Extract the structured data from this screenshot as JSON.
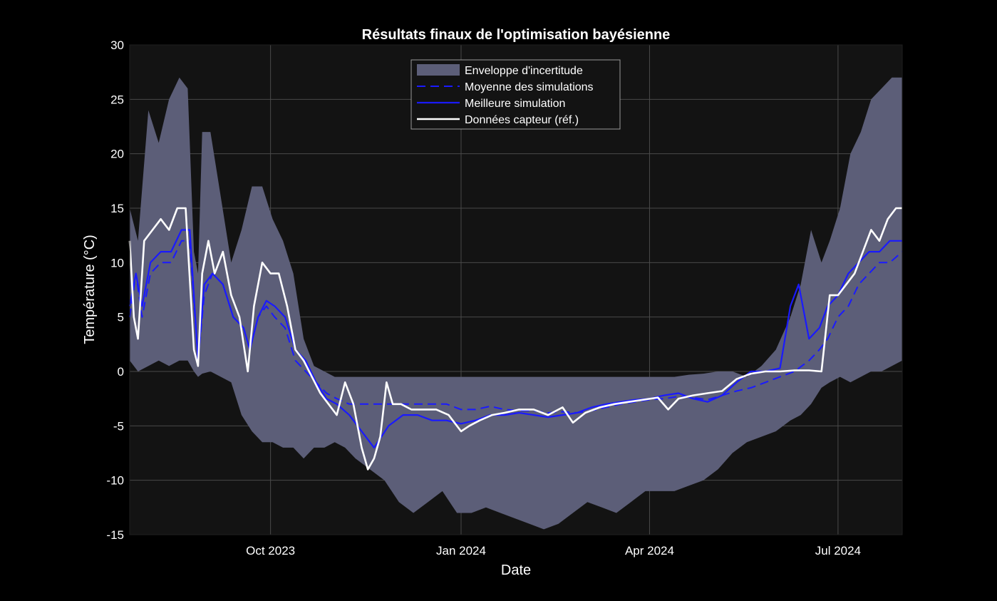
{
  "chart_data": {
    "type": "line",
    "title": "Résultats finaux de l'optimisation bayésienne",
    "xlabel": "Date",
    "ylabel": "Température (°C)",
    "xlim": [
      "2023-07-25",
      "2024-08-01"
    ],
    "ylim": [
      -15,
      30
    ],
    "y_ticks": [
      -15,
      -10,
      -5,
      0,
      5,
      10,
      15,
      20,
      25,
      30
    ],
    "x_ticks": [
      {
        "date": "2023-10-01",
        "label": "Oct 2023"
      },
      {
        "date": "2024-01-01",
        "label": "Jan 2024"
      },
      {
        "date": "2024-04-01",
        "label": "Apr 2024"
      },
      {
        "date": "2024-07-01",
        "label": "Jul 2024"
      }
    ],
    "grid": true,
    "legend_position": "top-center",
    "background_color": "#131313",
    "colors": {
      "band": "#5c5e78",
      "mean": "#1a1aff",
      "best": "#1a1aff",
      "sensor": "#ffffff"
    },
    "series": [
      {
        "name": "Enveloppe d'incertitude",
        "kind": "band",
        "x": [
          "2023-07-25",
          "2023-07-29",
          "2023-08-03",
          "2023-08-08",
          "2023-08-13",
          "2023-08-18",
          "2023-08-22",
          "2023-08-25",
          "2023-08-27",
          "2023-08-29",
          "2023-09-02",
          "2023-09-07",
          "2023-09-12",
          "2023-09-17",
          "2023-09-22",
          "2023-09-27",
          "2023-10-02",
          "2023-10-07",
          "2023-10-12",
          "2023-10-17",
          "2023-10-22",
          "2023-10-27",
          "2023-11-01",
          "2023-11-06",
          "2023-11-11",
          "2023-11-18",
          "2023-11-25",
          "2023-12-02",
          "2023-12-09",
          "2023-12-16",
          "2023-12-23",
          "2023-12-30",
          "2024-01-06",
          "2024-01-13",
          "2024-01-20",
          "2024-01-27",
          "2024-02-03",
          "2024-02-10",
          "2024-02-17",
          "2024-02-24",
          "2024-03-02",
          "2024-03-09",
          "2024-03-16",
          "2024-03-23",
          "2024-03-30",
          "2024-04-06",
          "2024-04-13",
          "2024-04-20",
          "2024-04-27",
          "2024-05-04",
          "2024-05-11",
          "2024-05-18",
          "2024-05-25",
          "2024-06-01",
          "2024-06-08",
          "2024-06-13",
          "2024-06-18",
          "2024-06-23",
          "2024-06-27",
          "2024-07-02",
          "2024-07-07",
          "2024-07-12",
          "2024-07-17",
          "2024-07-22",
          "2024-07-27",
          "2024-08-01"
        ],
        "upper": [
          15,
          12,
          24,
          21,
          25,
          27,
          26,
          11,
          9,
          22,
          22,
          16,
          10,
          13,
          17,
          17,
          14,
          12,
          9,
          3,
          0.5,
          0,
          -0.5,
          -0.5,
          -0.5,
          -0.5,
          -0.5,
          -0.5,
          -0.5,
          -0.5,
          -0.5,
          -0.5,
          -0.5,
          -0.5,
          -0.5,
          -0.5,
          -0.5,
          -0.5,
          -0.5,
          -0.5,
          -0.5,
          -0.5,
          -0.5,
          -0.5,
          -0.5,
          -0.5,
          -0.5,
          -0.3,
          -0.2,
          0,
          0,
          -0.5,
          0.5,
          2,
          5,
          8,
          13,
          10,
          12,
          15,
          20,
          22,
          25,
          26,
          27,
          27
        ],
        "lower": [
          1,
          0,
          0.5,
          1,
          0.5,
          1,
          1,
          0,
          -0.5,
          -0.2,
          0,
          -0.5,
          -1,
          -4,
          -5.5,
          -6.5,
          -6.5,
          -7,
          -7,
          -8,
          -7,
          -7,
          -6.5,
          -7,
          -8,
          -9,
          -10,
          -12,
          -13,
          -12,
          -11,
          -13,
          -13,
          -12.5,
          -13,
          -13.5,
          -14,
          -14.5,
          -14,
          -13,
          -12,
          -12.5,
          -13,
          -12,
          -11,
          -11,
          -11,
          -10.5,
          -10,
          -9,
          -7.5,
          -6.5,
          -6,
          -5.5,
          -4.5,
          -4,
          -3,
          -1.5,
          -1,
          -0.5,
          -1,
          -0.5,
          0,
          0,
          0.5,
          1
        ]
      },
      {
        "name": "Moyenne des simulations",
        "kind": "dashed",
        "x": [
          "2023-07-25",
          "2023-07-28",
          "2023-07-31",
          "2023-08-04",
          "2023-08-09",
          "2023-08-14",
          "2023-08-19",
          "2023-08-23",
          "2023-08-27",
          "2023-08-30",
          "2023-09-03",
          "2023-09-08",
          "2023-09-13",
          "2023-09-18",
          "2023-09-21",
          "2023-09-25",
          "2023-09-29",
          "2023-10-03",
          "2023-10-08",
          "2023-10-13",
          "2023-10-18",
          "2023-10-23",
          "2023-10-28",
          "2023-11-02",
          "2023-11-08",
          "2023-11-14",
          "2023-11-20",
          "2023-11-27",
          "2023-12-04",
          "2023-12-11",
          "2023-12-18",
          "2023-12-25",
          "2024-01-01",
          "2024-01-08",
          "2024-01-15",
          "2024-01-22",
          "2024-01-29",
          "2024-02-05",
          "2024-02-12",
          "2024-02-19",
          "2024-02-26",
          "2024-03-04",
          "2024-03-11",
          "2024-03-18",
          "2024-03-25",
          "2024-04-01",
          "2024-04-08",
          "2024-04-15",
          "2024-04-22",
          "2024-04-29",
          "2024-05-06",
          "2024-05-13",
          "2024-05-20",
          "2024-05-27",
          "2024-06-03",
          "2024-06-10",
          "2024-06-17",
          "2024-06-22",
          "2024-06-26",
          "2024-07-01",
          "2024-07-06",
          "2024-07-11",
          "2024-07-16",
          "2024-07-21",
          "2024-07-26",
          "2024-08-01"
        ],
        "y": [
          5,
          9,
          5,
          9,
          10,
          10,
          12,
          12,
          1,
          7,
          9,
          8,
          5,
          4,
          2,
          5,
          6,
          5,
          4,
          1,
          0,
          -1,
          -2,
          -2.5,
          -3,
          -3,
          -3,
          -3,
          -3,
          -3,
          -3,
          -3,
          -3.5,
          -3.5,
          -3.2,
          -3.5,
          -3.6,
          -3.6,
          -3.8,
          -3.7,
          -3.8,
          -3.6,
          -3.3,
          -3.0,
          -2.8,
          -2.6,
          -2.5,
          -2.3,
          -2.4,
          -2.6,
          -2.2,
          -1.8,
          -1.5,
          -1,
          -0.5,
          0,
          1,
          2,
          3,
          5,
          6,
          8,
          9,
          10,
          10,
          11
        ]
      },
      {
        "name": "Meilleure simulation",
        "kind": "solid",
        "x": [
          "2023-07-25",
          "2023-07-28",
          "2023-07-31",
          "2023-08-04",
          "2023-08-09",
          "2023-08-14",
          "2023-08-19",
          "2023-08-23",
          "2023-08-27",
          "2023-08-30",
          "2023-09-03",
          "2023-09-08",
          "2023-09-13",
          "2023-09-18",
          "2023-09-21",
          "2023-09-25",
          "2023-09-29",
          "2023-10-03",
          "2023-10-08",
          "2023-10-13",
          "2023-10-18",
          "2023-10-23",
          "2023-10-28",
          "2023-11-02",
          "2023-11-08",
          "2023-11-14",
          "2023-11-20",
          "2023-11-27",
          "2023-12-04",
          "2023-12-11",
          "2023-12-18",
          "2023-12-25",
          "2024-01-01",
          "2024-01-08",
          "2024-01-15",
          "2024-01-22",
          "2024-01-29",
          "2024-02-05",
          "2024-02-12",
          "2024-02-19",
          "2024-02-26",
          "2024-03-04",
          "2024-03-11",
          "2024-03-18",
          "2024-03-25",
          "2024-04-01",
          "2024-04-08",
          "2024-04-15",
          "2024-04-22",
          "2024-04-29",
          "2024-05-06",
          "2024-05-13",
          "2024-05-20",
          "2024-05-27",
          "2024-06-03",
          "2024-06-08",
          "2024-06-12",
          "2024-06-17",
          "2024-06-22",
          "2024-06-26",
          "2024-07-01",
          "2024-07-06",
          "2024-07-11",
          "2024-07-16",
          "2024-07-21",
          "2024-07-26",
          "2024-08-01"
        ],
        "y": [
          6,
          9,
          6,
          10,
          11,
          11,
          13,
          13,
          1,
          8,
          9,
          8,
          5,
          4,
          2,
          5,
          6.5,
          6,
          5,
          2,
          1,
          -1,
          -2.5,
          -3,
          -4,
          -5.5,
          -7,
          -5,
          -4,
          -4,
          -4.5,
          -4.5,
          -4.8,
          -4.5,
          -4,
          -4,
          -3.8,
          -4,
          -4.2,
          -4,
          -3.8,
          -3.3,
          -3,
          -2.8,
          -2.6,
          -2.5,
          -2.2,
          -2,
          -2.5,
          -2.8,
          -2.2,
          -1,
          0,
          0,
          0.3,
          6,
          8,
          3,
          4,
          6,
          7,
          9,
          10,
          11,
          11,
          12,
          12
        ]
      },
      {
        "name": "Données capteur (réf.)",
        "kind": "white",
        "x": [
          "2023-07-25",
          "2023-07-27",
          "2023-07-29",
          "2023-08-01",
          "2023-08-05",
          "2023-08-09",
          "2023-08-13",
          "2023-08-17",
          "2023-08-21",
          "2023-08-25",
          "2023-08-27",
          "2023-08-29",
          "2023-09-01",
          "2023-09-04",
          "2023-09-08",
          "2023-09-12",
          "2023-09-16",
          "2023-09-20",
          "2023-09-23",
          "2023-09-27",
          "2023-10-01",
          "2023-10-05",
          "2023-10-09",
          "2023-10-13",
          "2023-10-17",
          "2023-10-21",
          "2023-10-25",
          "2023-10-29",
          "2023-11-02",
          "2023-11-06",
          "2023-11-10",
          "2023-11-14",
          "2023-11-17",
          "2023-11-20",
          "2023-11-23",
          "2023-11-26",
          "2023-11-29",
          "2023-12-03",
          "2023-12-08",
          "2023-12-14",
          "2023-12-20",
          "2023-12-26",
          "2024-01-01",
          "2024-01-05",
          "2024-01-10",
          "2024-01-16",
          "2024-01-22",
          "2024-01-29",
          "2024-02-05",
          "2024-02-12",
          "2024-02-19",
          "2024-02-24",
          "2024-03-01",
          "2024-03-08",
          "2024-03-15",
          "2024-03-22",
          "2024-03-29",
          "2024-04-05",
          "2024-04-10",
          "2024-04-15",
          "2024-04-22",
          "2024-04-29",
          "2024-05-06",
          "2024-05-13",
          "2024-05-20",
          "2024-05-27",
          "2024-06-03",
          "2024-06-10",
          "2024-06-17",
          "2024-06-23",
          "2024-06-27",
          "2024-07-01",
          "2024-07-05",
          "2024-07-09",
          "2024-07-13",
          "2024-07-17",
          "2024-07-21",
          "2024-07-25",
          "2024-07-29",
          "2024-08-01"
        ],
        "y": [
          12,
          5,
          3,
          12,
          13,
          14,
          13,
          15,
          15,
          2,
          0.5,
          9,
          12,
          9,
          11,
          7,
          5,
          0,
          6,
          10,
          9,
          9,
          6,
          2,
          1,
          -0.5,
          -2,
          -3,
          -4,
          -1,
          -3,
          -7,
          -9,
          -8,
          -6,
          -1,
          -3,
          -3,
          -3.5,
          -3.5,
          -3.5,
          -4,
          -5.5,
          -5,
          -4.5,
          -4,
          -3.8,
          -3.5,
          -3.5,
          -4,
          -3.3,
          -4.7,
          -3.8,
          -3.3,
          -3.0,
          -2.8,
          -2.6,
          -2.4,
          -3.5,
          -2.5,
          -2.2,
          -2.0,
          -1.8,
          -0.7,
          -0.2,
          0,
          0,
          0.1,
          0.1,
          0,
          7,
          7,
          8,
          9,
          11,
          13,
          12,
          14,
          15,
          15
        ]
      }
    ]
  }
}
